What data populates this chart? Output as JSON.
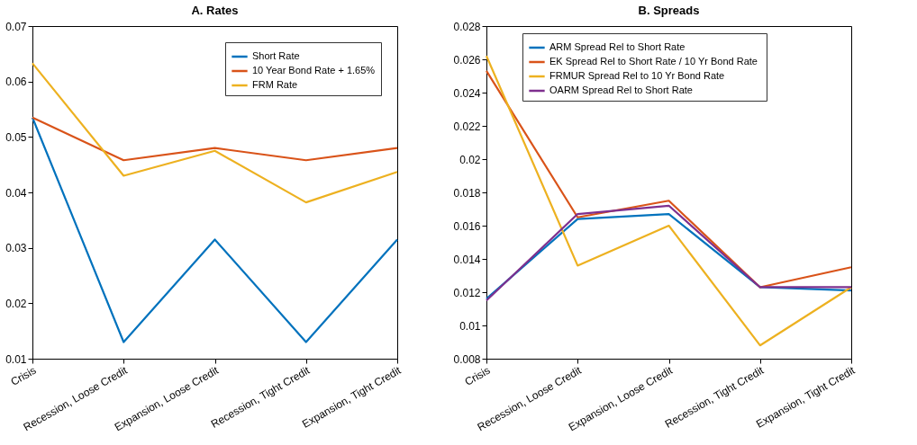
{
  "chart_data": [
    {
      "type": "line",
      "title": "A. Rates",
      "categories": [
        "Crisis",
        "Recession, Loose Credit",
        "Expansion, Loose Credit",
        "Recession, Tight Credit",
        "Expansion, Tight Credit"
      ],
      "series": [
        {
          "name": "Short Rate",
          "color": "#0072bd",
          "values": [
            0.0535,
            0.013,
            0.0315,
            0.013,
            0.0315
          ]
        },
        {
          "name": "10 Year Bond Rate + 1.65%",
          "color": "#d95319",
          "values": [
            0.0535,
            0.0458,
            0.048,
            0.0458,
            0.048
          ]
        },
        {
          "name": "FRM Rate",
          "color": "#edb120",
          "values": [
            0.0633,
            0.043,
            0.0475,
            0.0382,
            0.0437
          ]
        }
      ],
      "ylim": [
        0.01,
        0.07
      ],
      "yticks": [
        0.01,
        0.02,
        0.03,
        0.04,
        0.05,
        0.06,
        0.07
      ],
      "legend": "top right",
      "grid": false,
      "marker": "none",
      "line_style": "solid"
    },
    {
      "type": "line",
      "title": "B. Spreads",
      "categories": [
        "Crisis",
        "Recession, Loose Credit",
        "Expansion, Loose Credit",
        "Recession, Tight Credit",
        "Expansion, Tight Credit"
      ],
      "series": [
        {
          "name": "ARM Spread Rel to Short Rate",
          "color": "#0072bd",
          "values": [
            0.0116,
            0.0164,
            0.0167,
            0.0123,
            0.0121
          ]
        },
        {
          "name": "EK Spread  Rel to Short Rate / 10 Yr Bond Rate",
          "color": "#d95319",
          "values": [
            0.0253,
            0.0165,
            0.0175,
            0.0123,
            0.0135
          ]
        },
        {
          "name": "FRMUR Spread Rel to 10 Yr Bond Rate",
          "color": "#edb120",
          "values": [
            0.0262,
            0.0136,
            0.016,
            0.0088,
            0.0123
          ]
        },
        {
          "name": "OARM Spread Rel to Short Rate",
          "color": "#7e2f8e",
          "values": [
            0.0115,
            0.0167,
            0.0172,
            0.0123,
            0.0123
          ]
        }
      ],
      "ylim": [
        0.008,
        0.028
      ],
      "yticks": [
        0.008,
        0.01,
        0.012,
        0.014,
        0.016,
        0.018,
        0.02,
        0.022,
        0.024,
        0.026,
        0.028
      ],
      "legend": "top",
      "grid": false,
      "marker": "none",
      "line_style": "solid"
    }
  ]
}
